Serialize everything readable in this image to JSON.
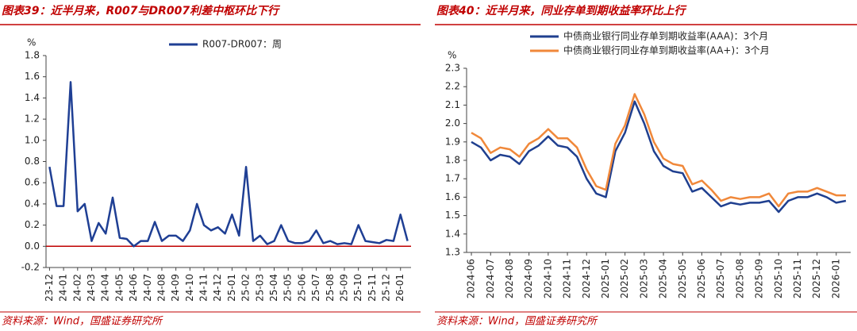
{
  "chart_data": [
    {
      "type": "line",
      "title": "图表39：近半月来，R007与DR007利差中枢环比下行",
      "y_label": "%",
      "source": "资料来源：Wind，国盛证券研究所",
      "categories": [
        "23-12",
        null,
        "24-01",
        null,
        "24-02",
        null,
        "24-03",
        null,
        "24-04",
        null,
        "24-05",
        null,
        "24-06",
        null,
        "24-07",
        null,
        "24-08",
        null,
        "24-09",
        null,
        "24-10",
        null,
        "24-11",
        null,
        "24-12",
        null,
        "25-01",
        null,
        "25-02",
        null,
        "25-03",
        null,
        "25-04",
        null,
        "25-05",
        null,
        "25-06",
        null,
        "25-07",
        null,
        "25-08",
        null,
        "25-09",
        null,
        "25-10",
        null,
        "25-11",
        null,
        "25-12",
        null,
        "26-01",
        null
      ],
      "series": [
        {
          "name": "R007-DR007：周",
          "color": "#1f3f94",
          "values": [
            0.75,
            0.38,
            0.38,
            1.55,
            0.33,
            0.4,
            0.05,
            0.22,
            0.12,
            0.46,
            0.08,
            0.07,
            0.0,
            0.05,
            0.05,
            0.23,
            0.05,
            0.1,
            0.1,
            0.05,
            0.15,
            0.4,
            0.2,
            0.15,
            0.18,
            0.12,
            0.3,
            0.1,
            0.75,
            0.05,
            0.1,
            0.02,
            0.05,
            0.2,
            0.05,
            0.03,
            0.03,
            0.05,
            0.15,
            0.03,
            0.05,
            0.02,
            0.03,
            0.02,
            0.2,
            0.05,
            0.04,
            0.03,
            0.06,
            0.05,
            0.3,
            0.05
          ]
        }
      ],
      "ylim": [
        -0.2,
        1.8
      ],
      "yticks": [
        -0.2,
        {
          "value": 0,
          "label": "0.0"
        },
        0.2,
        0.4,
        0.6,
        0.8,
        {
          "value": 1,
          "label": "1.0"
        },
        1.2,
        1.4,
        1.6,
        1.8
      ],
      "zero_line_color": "#c00000",
      "legend": "top"
    },
    {
      "type": "line",
      "title": "图表40：近半月来，同业存单到期收益率环比上行",
      "y_label": "%",
      "source": "资料来源：Wind，国盛证券研究所",
      "categories": [
        "2024-06",
        null,
        "2024-07",
        null,
        "2024-08",
        null,
        "2024-09",
        null,
        "2024-10",
        null,
        "2024-11",
        null,
        "2024-12",
        null,
        "2025-01",
        null,
        "2025-02",
        null,
        "2025-03",
        null,
        "2025-04",
        null,
        "2025-05",
        null,
        "2025-06",
        null,
        "2025-07",
        null,
        "2025-08",
        null,
        "2025-09",
        null,
        "2025-10",
        null,
        "2025-11",
        null,
        "2025-12",
        null,
        "2026-01",
        null
      ],
      "series": [
        {
          "name": "中债商业银行同业存单到期收益率(AAA)：3个月",
          "color": "#1f3f8f",
          "values": [
            1.9,
            1.87,
            1.8,
            1.83,
            1.82,
            1.78,
            1.85,
            1.88,
            1.93,
            1.88,
            1.87,
            1.82,
            1.7,
            1.62,
            1.6,
            1.85,
            1.95,
            2.12,
            2.0,
            1.85,
            1.77,
            1.74,
            1.73,
            1.63,
            1.65,
            1.6,
            1.55,
            1.57,
            1.56,
            1.57,
            1.57,
            1.58,
            1.52,
            1.58,
            1.6,
            1.6,
            1.62,
            1.6,
            1.57,
            1.58
          ]
        },
        {
          "name": "中债商业银行同业存单到期收益率(AA+)：3个月",
          "color": "#f0883a",
          "values": [
            1.95,
            1.92,
            1.84,
            1.87,
            1.86,
            1.82,
            1.89,
            1.92,
            1.97,
            1.92,
            1.92,
            1.87,
            1.75,
            1.66,
            1.64,
            1.89,
            1.99,
            2.16,
            2.05,
            1.9,
            1.81,
            1.78,
            1.77,
            1.67,
            1.69,
            1.64,
            1.58,
            1.6,
            1.59,
            1.6,
            1.6,
            1.62,
            1.55,
            1.62,
            1.63,
            1.63,
            1.65,
            1.63,
            1.61,
            1.61
          ]
        }
      ],
      "ylim": [
        1.3,
        2.3
      ],
      "yticks": [
        1.3,
        1.4,
        1.5,
        1.6,
        1.7,
        1.8,
        1.9,
        {
          "value": 2,
          "label": "2.0"
        },
        2.1,
        2.2,
        2.3
      ],
      "legend": "upper left"
    }
  ]
}
